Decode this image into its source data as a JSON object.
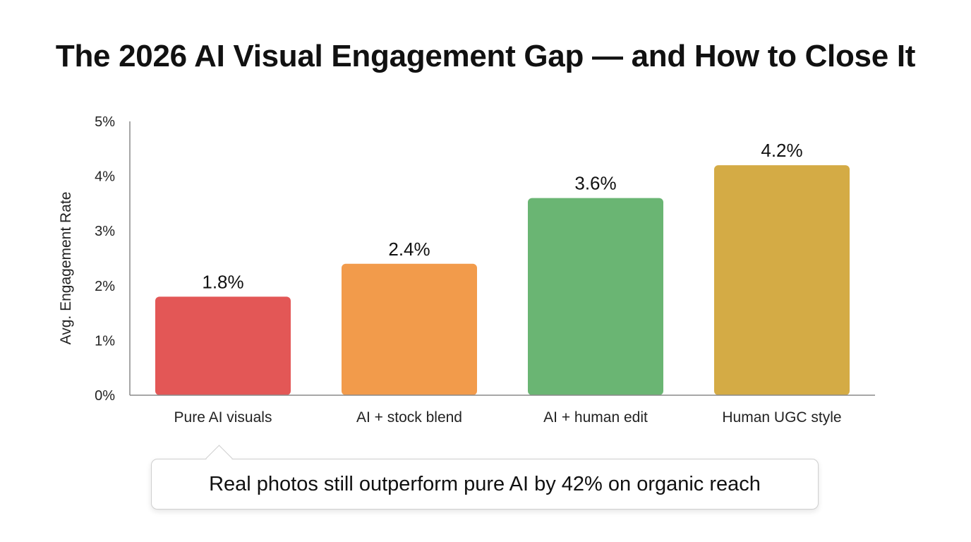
{
  "title": "The 2026 AI Visual Engagement Gap — and How to Close It",
  "callout": {
    "text": "Real photos still outperform pure AI by 42% on organic reach"
  },
  "chart_data": {
    "type": "bar",
    "ylabel": "Avg. Engagement Rate",
    "xlabel": "",
    "ylim": [
      0,
      5
    ],
    "yticks": [
      "0%",
      "1%",
      "2%",
      "3%",
      "4%",
      "5%"
    ],
    "grid": false,
    "categories": [
      "Pure AI visuals",
      "AI + stock blend",
      "AI + human edit",
      "Human UGC style"
    ],
    "values": [
      1.8,
      2.4,
      3.6,
      4.2
    ],
    "data_labels": [
      "1.8%",
      "2.4%",
      "3.6%",
      "4.2%"
    ],
    "colors": [
      "#e35756",
      "#f29b4b",
      "#6ab573",
      "#d4ab45"
    ]
  }
}
